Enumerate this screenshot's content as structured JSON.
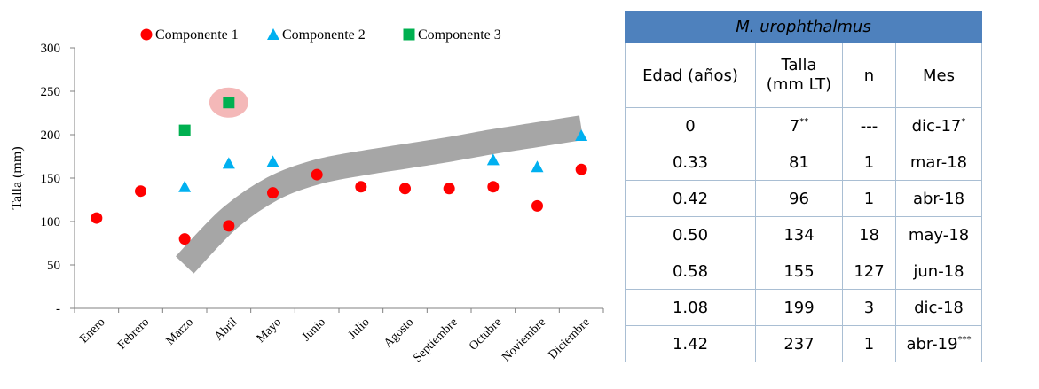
{
  "chart_data": {
    "type": "scatter",
    "title": "",
    "xlabel": "",
    "ylabel": "Talla (mm)",
    "categories": [
      "Enero",
      "Febrero",
      "Marzo",
      "Abril",
      "Mayo",
      "Junio",
      "Julio",
      "Agosto",
      "Septiembre",
      "Octubre",
      "Noviembre",
      "Diciembre"
    ],
    "ylim": [
      0,
      300
    ],
    "yticks": [
      "-",
      "50",
      "100",
      "150",
      "200",
      "250",
      "300"
    ],
    "ytick_values": [
      0,
      50,
      100,
      150,
      200,
      250,
      300
    ],
    "legend_position": "top",
    "series": [
      {
        "name": "Componente 1",
        "marker": "circle",
        "color": "#ff0000",
        "points": [
          [
            0,
            104
          ],
          [
            1,
            135
          ],
          [
            2,
            80
          ],
          [
            3,
            95
          ],
          [
            4,
            133
          ],
          [
            5,
            154
          ],
          [
            6,
            140
          ],
          [
            7,
            138
          ],
          [
            8,
            138
          ],
          [
            9,
            140
          ],
          [
            10,
            118
          ],
          [
            11,
            160
          ]
        ]
      },
      {
        "name": "Componente 2",
        "marker": "triangle",
        "color": "#00b0f0",
        "points": [
          [
            2,
            140
          ],
          [
            3,
            167
          ],
          [
            4,
            169
          ],
          [
            9,
            171
          ],
          [
            10,
            163
          ],
          [
            11,
            199
          ]
        ]
      },
      {
        "name": "Componente 3",
        "marker": "square",
        "color": "#00b050",
        "points": [
          [
            2,
            205
          ],
          [
            3,
            237
          ]
        ]
      }
    ],
    "trend_band": {
      "color": "#a6a6a6",
      "x": [
        2,
        3,
        4,
        5,
        6,
        7,
        8,
        9,
        10,
        11
      ],
      "y": [
        50,
        103,
        138,
        157,
        167,
        175,
        183,
        192,
        200,
        208
      ]
    },
    "highlight": {
      "series": "Componente 3",
      "point_index": 1,
      "color": "#f4b8b8"
    }
  },
  "table": {
    "title": "M. urophthalmus",
    "headers": [
      "Edad (años)",
      "Talla (mm LT)",
      "n",
      "Mes"
    ],
    "rows": [
      {
        "edad": "0",
        "talla": "7",
        "talla_sup": "**",
        "n": "---",
        "mes": "dic-17",
        "mes_sup": "*"
      },
      {
        "edad": "0.33",
        "talla": "81",
        "talla_sup": "",
        "n": "1",
        "mes": "mar-18",
        "mes_sup": ""
      },
      {
        "edad": "0.42",
        "talla": "96",
        "talla_sup": "",
        "n": "1",
        "mes": "abr-18",
        "mes_sup": ""
      },
      {
        "edad": "0.50",
        "talla": "134",
        "talla_sup": "",
        "n": "18",
        "mes": "may-18",
        "mes_sup": ""
      },
      {
        "edad": "0.58",
        "talla": "155",
        "talla_sup": "",
        "n": "127",
        "mes": "jun-18",
        "mes_sup": ""
      },
      {
        "edad": "1.08",
        "talla": "199",
        "talla_sup": "",
        "n": "3",
        "mes": "dic-18",
        "mes_sup": ""
      },
      {
        "edad": "1.42",
        "talla": "237",
        "talla_sup": "",
        "n": "1",
        "mes": "abr-19",
        "mes_sup": "***"
      }
    ]
  }
}
